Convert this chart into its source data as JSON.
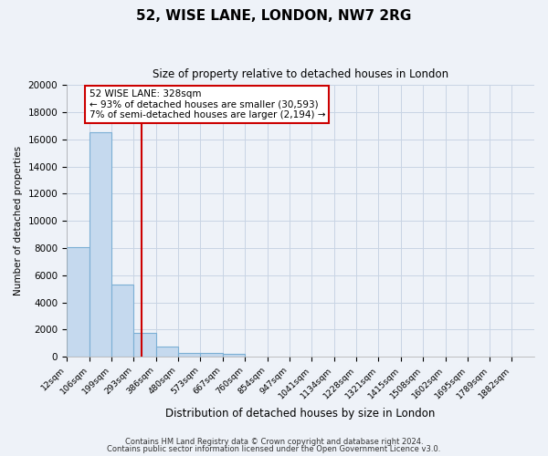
{
  "title": "52, WISE LANE, LONDON, NW7 2RG",
  "subtitle": "Size of property relative to detached houses in London",
  "xlabel": "Distribution of detached houses by size in London",
  "ylabel": "Number of detached properties",
  "bin_labels": [
    "12sqm",
    "106sqm",
    "199sqm",
    "293sqm",
    "386sqm",
    "480sqm",
    "573sqm",
    "667sqm",
    "760sqm",
    "854sqm",
    "947sqm",
    "1041sqm",
    "1134sqm",
    "1228sqm",
    "1321sqm",
    "1415sqm",
    "1508sqm",
    "1602sqm",
    "1695sqm",
    "1789sqm",
    "1882sqm"
  ],
  "bin_edges": [
    12,
    106,
    199,
    293,
    386,
    480,
    573,
    667,
    760,
    854,
    947,
    1041,
    1134,
    1228,
    1321,
    1415,
    1508,
    1602,
    1695,
    1789,
    1882
  ],
  "bar_heights": [
    8100,
    16500,
    5300,
    1750,
    750,
    300,
    250,
    200,
    0,
    0,
    0,
    0,
    0,
    0,
    0,
    0,
    0,
    0,
    0,
    0
  ],
  "property_size": 328,
  "property_label": "52 WISE LANE: 328sqm",
  "pct_smaller": "93% of detached houses are smaller (30,593)",
  "pct_larger": "7% of semi-detached houses are larger (2,194)",
  "ylim": [
    0,
    20000
  ],
  "yticks": [
    0,
    2000,
    4000,
    6000,
    8000,
    10000,
    12000,
    14000,
    16000,
    18000,
    20000
  ],
  "bar_color": "#c5d9ee",
  "bar_edge_color": "#7bafd4",
  "vline_color": "#cc0000",
  "annotation_box_color": "#ffffff",
  "annotation_box_edge": "#cc0000",
  "grid_color": "#c8d4e4",
  "bg_color": "#eef2f8",
  "plot_bg_color": "#eef2f8",
  "footer1": "Contains HM Land Registry data © Crown copyright and database right 2024.",
  "footer2": "Contains public sector information licensed under the Open Government Licence v3.0."
}
